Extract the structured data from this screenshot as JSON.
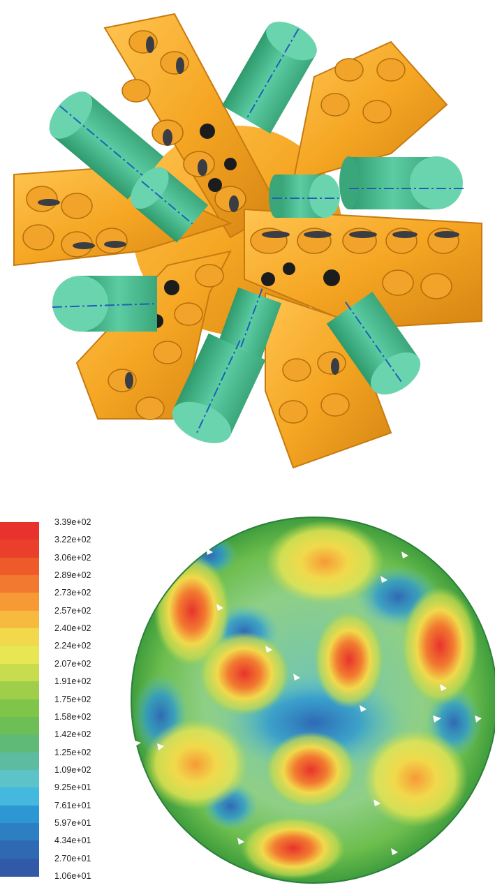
{
  "legend": {
    "ticks": [
      "3.39e+02",
      "3.22e+02",
      "3.06e+02",
      "2.89e+02",
      "2.73e+02",
      "2.57e+02",
      "2.40e+02",
      "2.24e+02",
      "2.07e+02",
      "1.91e+02",
      "1.75e+02",
      "1.58e+02",
      "1.42e+02",
      "1.25e+02",
      "1.09e+02",
      "9.25e+01",
      "7.61e+01",
      "5.97e+01",
      "4.34e+01",
      "2.70e+01",
      "1.06e+01"
    ],
    "colors": [
      "#e8332c",
      "#ea3f2a",
      "#ee5a2a",
      "#f27a30",
      "#f79a36",
      "#f6bb3e",
      "#f1d94b",
      "#e8e652",
      "#c8dc4f",
      "#9fcf4a",
      "#7fc54a",
      "#6cbe55",
      "#5fba78",
      "#5dbca0",
      "#5cc3c8",
      "#45b8e0",
      "#2c97d2",
      "#2c7fc2",
      "#2f69b4",
      "#3258a8"
    ]
  },
  "colors": {
    "bit_body": "#f5a623",
    "nozzle": "#4fc499",
    "axis_line": "#1f5fb8",
    "cutter_face": "#3a3d44"
  }
}
